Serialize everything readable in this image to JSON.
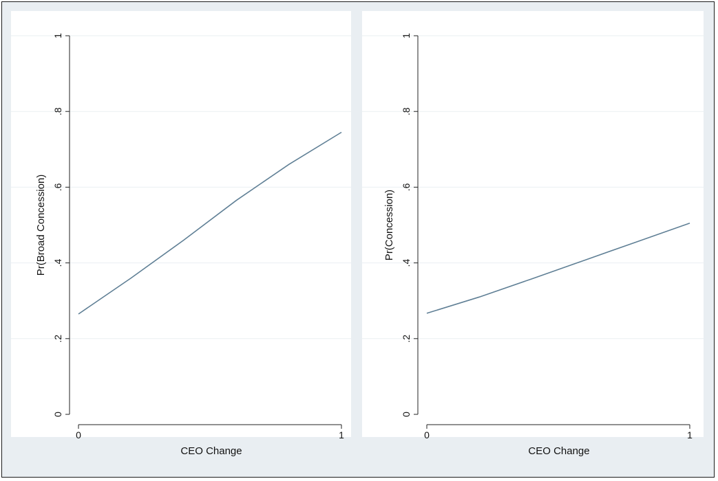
{
  "chart_data": [
    {
      "type": "line",
      "xlabel": "CEO Change",
      "ylabel": "Pr(Broad Concession)",
      "xlim": [
        0,
        1
      ],
      "ylim": [
        0,
        1
      ],
      "x_ticks": [
        "0",
        "1"
      ],
      "y_ticks": [
        "0",
        ".2",
        ".4",
        ".6",
        ".8",
        "1"
      ],
      "grid": true,
      "series": [
        {
          "x": [
            0,
            0.2,
            0.4,
            0.6,
            0.8,
            1
          ],
          "y": [
            0.265,
            0.36,
            0.46,
            0.565,
            0.66,
            0.745
          ]
        }
      ]
    },
    {
      "type": "line",
      "xlabel": "CEO Change",
      "ylabel": "Pr(Concession)",
      "xlim": [
        0,
        1
      ],
      "ylim": [
        0,
        1
      ],
      "x_ticks": [
        "0",
        "1"
      ],
      "y_ticks": [
        "0",
        ".2",
        ".4",
        ".6",
        ".8",
        "1"
      ],
      "grid": true,
      "series": [
        {
          "x": [
            0,
            0.2,
            0.4,
            0.6,
            0.8,
            1
          ],
          "y": [
            0.267,
            0.31,
            0.358,
            0.407,
            0.456,
            0.505
          ]
        }
      ]
    }
  ]
}
